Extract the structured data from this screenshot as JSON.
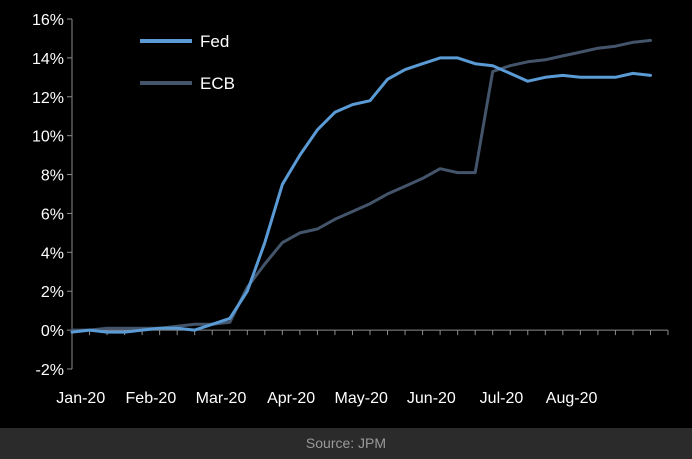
{
  "chart_data": {
    "type": "line",
    "title": "",
    "xlabel": "",
    "ylabel": "",
    "ylim": [
      -2,
      16
    ],
    "y_ticks": [
      -2,
      0,
      2,
      4,
      6,
      8,
      10,
      12,
      14,
      16
    ],
    "y_tick_labels": [
      "-2%",
      "0%",
      "2%",
      "4%",
      "6%",
      "8%",
      "10%",
      "12%",
      "14%",
      "16%"
    ],
    "x_range": [
      0,
      34
    ],
    "x_ticks": [
      0,
      4,
      8,
      12,
      16,
      20,
      24,
      28
    ],
    "x_tick_labels": [
      "Jan-20",
      "Feb-20",
      "Mar-20",
      "Apr-20",
      "May-20",
      "Jun-20",
      "Jul-20",
      "Aug-20"
    ],
    "legend_position": "top-left",
    "grid": false,
    "series": [
      {
        "name": "Fed",
        "color": "#5b9bd5",
        "x": [
          0,
          1,
          2,
          3,
          4,
          5,
          6,
          7,
          8,
          9,
          10,
          11,
          12,
          13,
          14,
          15,
          16,
          17,
          18,
          19,
          20,
          21,
          22,
          23,
          24,
          25,
          26,
          27,
          28,
          29,
          30,
          31,
          32,
          33
        ],
        "values": [
          -0.1,
          0.0,
          -0.1,
          -0.1,
          0.0,
          0.1,
          0.1,
          0.0,
          0.3,
          0.6,
          2.0,
          4.5,
          7.5,
          9.0,
          10.3,
          11.2,
          11.6,
          11.8,
          12.9,
          13.4,
          13.7,
          14.0,
          14.0,
          13.7,
          13.6,
          13.2,
          12.8,
          13.0,
          13.1,
          13.0,
          13.0,
          13.0,
          13.2,
          13.1
        ]
      },
      {
        "name": "ECB",
        "color": "#44546a",
        "x": [
          0,
          1,
          2,
          3,
          4,
          5,
          6,
          7,
          8,
          9,
          10,
          11,
          12,
          13,
          14,
          15,
          16,
          17,
          18,
          19,
          20,
          21,
          22,
          23,
          24,
          25,
          26,
          27,
          28,
          29,
          30,
          31,
          32,
          33
        ],
        "values": [
          0.0,
          0.0,
          0.1,
          0.1,
          0.1,
          0.1,
          0.2,
          0.3,
          0.3,
          0.4,
          2.2,
          3.4,
          4.5,
          5.0,
          5.2,
          5.7,
          6.1,
          6.5,
          7.0,
          7.4,
          7.8,
          8.3,
          8.1,
          8.1,
          13.3,
          13.6,
          13.8,
          13.9,
          14.1,
          14.3,
          14.5,
          14.6,
          14.8,
          14.9
        ]
      }
    ]
  },
  "footer": {
    "source": "Source: JPM"
  }
}
